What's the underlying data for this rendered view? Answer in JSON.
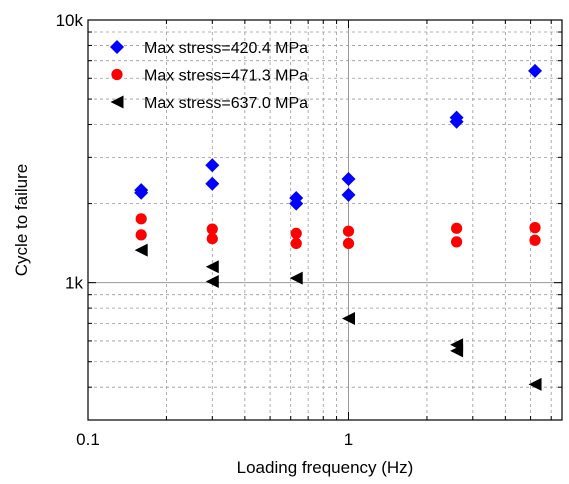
{
  "chart_data": {
    "type": "scatter",
    "title": "",
    "xlabel": "Loading frequency (Hz)",
    "ylabel": "Cycle to failure",
    "x_scale": "log",
    "y_scale": "log",
    "xlim": [
      0.1,
      6.6
    ],
    "ylim": [
      300,
      10000
    ],
    "x_ticks": [
      {
        "value": 0.1,
        "label": "0.1"
      },
      {
        "value": 1,
        "label": "1"
      }
    ],
    "y_ticks": [
      {
        "value": 1000,
        "label": "1k"
      },
      {
        "value": 10000,
        "label": "10k"
      }
    ],
    "grid": "on (dashed minor, solid major)",
    "legend_position": "top-left",
    "series": [
      {
        "name": "Max stress=420.4 MPa",
        "color": "#0000ff",
        "marker": "diamond",
        "points": [
          {
            "x": 0.16,
            "y": 2250
          },
          {
            "x": 0.16,
            "y": 2200
          },
          {
            "x": 0.3,
            "y": 2800
          },
          {
            "x": 0.3,
            "y": 2380
          },
          {
            "x": 0.63,
            "y": 2100
          },
          {
            "x": 0.63,
            "y": 2000
          },
          {
            "x": 1.0,
            "y": 2480
          },
          {
            "x": 1.0,
            "y": 2160
          },
          {
            "x": 2.6,
            "y": 4250
          },
          {
            "x": 2.6,
            "y": 4100
          },
          {
            "x": 5.2,
            "y": 6400
          }
        ]
      },
      {
        "name": "Max stress=471.3 MPa",
        "color": "#ff0000",
        "marker": "circle",
        "points": [
          {
            "x": 0.16,
            "y": 1750
          },
          {
            "x": 0.16,
            "y": 1520
          },
          {
            "x": 0.3,
            "y": 1600
          },
          {
            "x": 0.3,
            "y": 1470
          },
          {
            "x": 0.63,
            "y": 1540
          },
          {
            "x": 0.63,
            "y": 1410
          },
          {
            "x": 1.0,
            "y": 1570
          },
          {
            "x": 1.0,
            "y": 1410
          },
          {
            "x": 2.6,
            "y": 1610
          },
          {
            "x": 2.6,
            "y": 1430
          },
          {
            "x": 5.2,
            "y": 1620
          },
          {
            "x": 5.2,
            "y": 1450
          }
        ]
      },
      {
        "name": "Max stress=637.0 MPa",
        "color": "#000000",
        "marker": "triangle-left",
        "points": [
          {
            "x": 0.16,
            "y": 1330
          },
          {
            "x": 0.3,
            "y": 1150
          },
          {
            "x": 0.3,
            "y": 1010
          },
          {
            "x": 0.63,
            "y": 1040
          },
          {
            "x": 1.0,
            "y": 730
          },
          {
            "x": 2.6,
            "y": 580
          },
          {
            "x": 2.6,
            "y": 550
          },
          {
            "x": 5.2,
            "y": 410
          }
        ]
      }
    ]
  }
}
